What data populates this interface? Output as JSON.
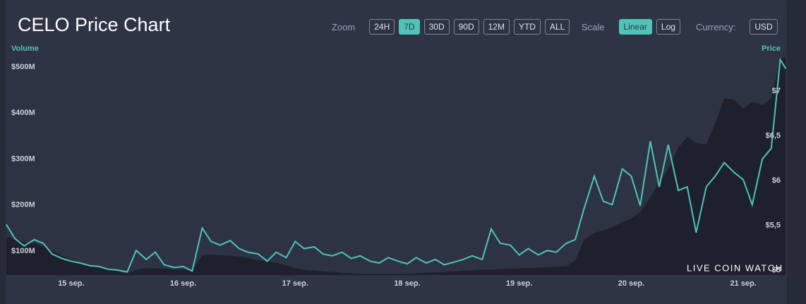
{
  "header": {
    "title": "CELO Price Chart"
  },
  "controls": {
    "zoom": {
      "label": "Zoom",
      "options": [
        "24H",
        "7D",
        "30D",
        "90D",
        "12M",
        "YTD",
        "ALL"
      ],
      "active": "7D"
    },
    "scale": {
      "label": "Scale",
      "options": [
        "Linear",
        "Log"
      ],
      "active": "Linear"
    },
    "currency": {
      "label": "Currency:",
      "options": [
        "USD"
      ],
      "active": ""
    }
  },
  "watermark": "LIVE COIN WATCH",
  "chart_data": {
    "type": "line",
    "x": [
      14.42,
      14.5,
      14.58,
      14.67,
      14.75,
      14.83,
      14.92,
      15,
      15.08,
      15.17,
      15.25,
      15.33,
      15.42,
      15.5,
      15.58,
      15.67,
      15.75,
      15.83,
      15.92,
      16,
      16.08,
      16.17,
      16.25,
      16.33,
      16.42,
      16.5,
      16.58,
      16.67,
      16.75,
      16.83,
      16.92,
      17,
      17.08,
      17.17,
      17.25,
      17.33,
      17.42,
      17.5,
      17.58,
      17.67,
      17.75,
      17.83,
      17.92,
      18,
      18.08,
      18.17,
      18.25,
      18.33,
      18.42,
      18.5,
      18.58,
      18.67,
      18.75,
      18.83,
      18.92,
      19,
      19.08,
      19.17,
      19.25,
      19.33,
      19.42,
      19.5,
      19.58,
      19.67,
      19.75,
      19.83,
      19.92,
      20,
      20.08,
      20.17,
      20.25,
      20.33,
      20.42,
      20.5,
      20.58,
      20.67,
      20.75,
      20.83,
      20.92,
      21,
      21.08,
      21.17,
      21.25,
      21.33,
      21.38
    ],
    "series": [
      {
        "name": "Volume",
        "color": "#1e212d",
        "values": [
          132,
          125,
          120,
          117,
          110,
          100,
          90,
          82,
          76,
          70,
          65,
          63,
          55,
          52,
          60,
          63,
          63,
          62,
          60,
          60,
          58,
          91,
          92,
          91,
          90,
          88,
          85,
          80,
          78,
          75,
          70,
          63,
          60,
          58,
          56,
          55,
          53,
          52,
          51,
          51,
          51,
          51,
          51,
          51,
          52,
          53,
          54,
          55,
          56,
          58,
          58,
          60,
          60,
          61,
          62,
          63,
          64,
          64,
          65,
          66,
          67,
          80,
          125,
          140,
          145,
          152,
          163,
          171,
          185,
          217,
          250,
          278,
          325,
          348,
          335,
          332,
          378,
          432,
          429,
          409,
          425,
          417,
          432,
          517,
          523
        ]
      },
      {
        "name": "Price",
        "color": "#4fc3b8",
        "axis": "y2",
        "values": [
          5.51,
          5.35,
          5.27,
          5.34,
          5.3,
          5.18,
          5.13,
          5.1,
          5.08,
          5.05,
          5.04,
          5.01,
          5.0,
          4.98,
          5.22,
          5.12,
          5.2,
          5.06,
          5.03,
          5.04,
          4.99,
          5.47,
          5.32,
          5.28,
          5.33,
          5.24,
          5.2,
          5.18,
          5.1,
          5.2,
          5.14,
          5.32,
          5.24,
          5.26,
          5.18,
          5.16,
          5.2,
          5.13,
          5.16,
          5.1,
          5.08,
          5.14,
          5.1,
          5.07,
          5.14,
          5.08,
          5.12,
          5.06,
          5.09,
          5.12,
          5.16,
          5.12,
          5.46,
          5.3,
          5.28,
          5.17,
          5.24,
          5.17,
          5.22,
          5.2,
          5.3,
          5.34,
          5.69,
          6.05,
          5.77,
          5.73,
          6.13,
          6.05,
          5.72,
          6.44,
          5.93,
          6.4,
          5.89,
          5.93,
          5.42,
          5.93,
          6.05,
          6.2,
          6.09,
          6.01,
          5.73,
          6.24,
          6.36,
          7.35,
          7.25
        ]
      }
    ],
    "xlim": [
      14.415,
      21.39
    ],
    "xticks": [
      {
        "value": 15,
        "label": "15 sep."
      },
      {
        "value": 16,
        "label": "16 sep."
      },
      {
        "value": 17,
        "label": "17 sep."
      },
      {
        "value": 18,
        "label": "18 sep."
      },
      {
        "value": 19,
        "label": "19 sep."
      },
      {
        "value": 20,
        "label": "20 sep."
      },
      {
        "value": 21,
        "label": "21 sep."
      }
    ],
    "ylim": [
      48,
      523
    ],
    "yticks": [
      {
        "value": 100,
        "label": "$100M"
      },
      {
        "value": 200,
        "label": "$200M"
      },
      {
        "value": 300,
        "label": "$300M"
      },
      {
        "value": 400,
        "label": "$400M"
      },
      {
        "value": 500,
        "label": "$500M"
      }
    ],
    "y2lim": [
      4.945,
      7.386
    ],
    "y2ticks": [
      {
        "value": 5,
        "label": "$5"
      },
      {
        "value": 5.5,
        "label": "$5,5"
      },
      {
        "value": 6,
        "label": "$6"
      },
      {
        "value": 6.5,
        "label": "$6,5"
      },
      {
        "value": 7,
        "label": "$7"
      }
    ],
    "grid": false
  }
}
